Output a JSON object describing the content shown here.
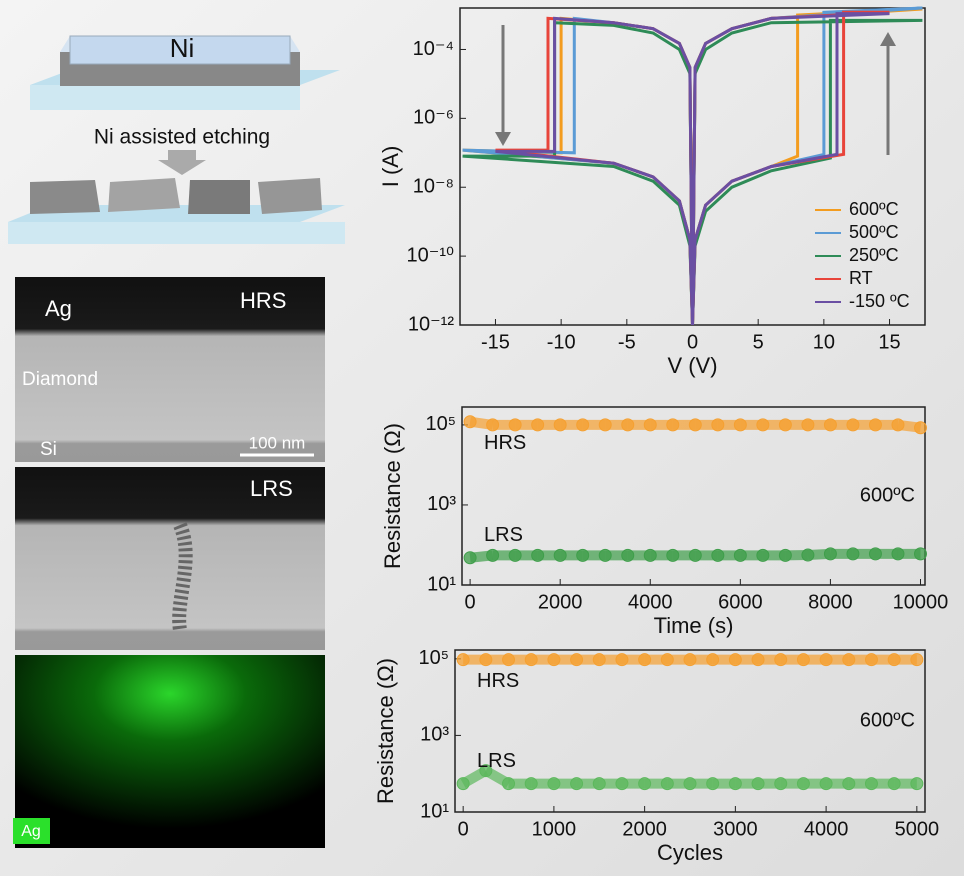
{
  "figure": {
    "schematic_top": "Ni",
    "schematic_caption": "Ni assisted etching",
    "tem_hrs": {
      "electrode": "Ag",
      "state": "HRS",
      "layer": "Diamond",
      "substrate": "Si",
      "scale_bar": "100 nm"
    },
    "tem_lrs": {
      "state": "LRS"
    },
    "eds_map": {
      "element": "Ag"
    }
  },
  "chart_data": [
    {
      "type": "line",
      "xlabel": "V (V)",
      "ylabel": "I (A)",
      "log_y": true,
      "legend": "lower right",
      "xlim": [
        -17.7,
        17.7
      ],
      "xticks": [
        -15,
        -10,
        -5,
        0,
        5,
        10,
        15
      ],
      "ylim": [
        1e-12,
        0.0016
      ],
      "yticks": [
        {
          "value": 1e-12,
          "label": "10⁻¹²"
        },
        {
          "value": 1e-10,
          "label": "10⁻¹⁰"
        },
        {
          "value": 1e-08,
          "label": "10⁻⁸"
        },
        {
          "value": 1e-06,
          "label": "10⁻⁶"
        },
        {
          "value": 0.0001,
          "label": "10⁻⁴"
        }
      ],
      "series": [
        {
          "name": "600ºC",
          "color": "#f39c1f",
          "x": [
            0,
            0.2,
            1,
            3,
            6,
            8,
            8,
            17.5,
            6,
            3,
            1,
            0.2,
            0,
            -0.2,
            -1,
            -3,
            -6,
            -10,
            -10,
            -17.5,
            -6,
            -3,
            -1,
            -0.2,
            0
          ],
          "values": [
            1e-12,
            3e-10,
            3e-09,
            1.5e-08,
            4e-08,
            8e-08,
            0.001,
            0.0015,
            0.0008,
            0.0004,
            0.00015,
            3e-05,
            1e-12,
            3e-05,
            0.00015,
            0.0004,
            0.0006,
            0.0008,
            1e-07,
            1.2e-07,
            5e-08,
            2e-08,
            4e-09,
            3e-10,
            1e-12
          ]
        },
        {
          "name": "500ºC",
          "color": "#5b9bd5",
          "x": [
            0,
            0.2,
            1,
            3,
            6,
            10,
            10,
            17.5,
            6,
            3,
            1,
            0.2,
            0,
            -0.2,
            -1,
            -3,
            -6,
            -9,
            -9,
            -17.5,
            -6,
            -3,
            -1,
            -0.2,
            0
          ],
          "values": [
            1e-12,
            3e-10,
            3e-09,
            1.5e-08,
            4e-08,
            9e-08,
            0.0012,
            0.0016,
            0.0008,
            0.0004,
            0.00015,
            3e-05,
            1e-12,
            3e-05,
            0.00015,
            0.0004,
            0.0006,
            0.0008,
            1e-07,
            1.2e-07,
            5e-08,
            2e-08,
            4e-09,
            3e-10,
            1e-12
          ]
        },
        {
          "name": "250ºC",
          "color": "#2e8b57",
          "x": [
            0,
            0.2,
            1,
            3,
            6,
            10.5,
            10.5,
            17.5,
            6,
            3,
            1,
            0.2,
            0,
            -0.2,
            -1,
            -3,
            -6,
            -10.5,
            -10.5,
            -17.5,
            -6,
            -3,
            -1,
            -0.2,
            0
          ],
          "values": [
            1e-12,
            2e-10,
            2e-09,
            1e-08,
            3e-08,
            7e-08,
            0.0007,
            0.0007,
            0.0006,
            0.0003,
            0.0001,
            2e-05,
            1e-12,
            2e-05,
            0.0001,
            0.0003,
            0.0005,
            0.0006,
            8e-08,
            8e-08,
            4e-08,
            1.5e-08,
            3e-09,
            2e-10,
            1e-12
          ]
        },
        {
          "name": "RT",
          "color": "#e8443a",
          "x": [
            0,
            0.2,
            1,
            3,
            6,
            11.5,
            11.5,
            15,
            6,
            3,
            1,
            0.2,
            0,
            -0.2,
            -1,
            -3,
            -6,
            -11,
            -11,
            -15,
            -6,
            -3,
            -1,
            -0.2,
            0
          ],
          "values": [
            1e-12,
            3e-10,
            3e-09,
            1.5e-08,
            4e-08,
            9e-08,
            0.0012,
            0.0012,
            0.0008,
            0.0004,
            0.00015,
            3e-05,
            1e-12,
            3e-05,
            0.00015,
            0.0004,
            0.0006,
            0.0008,
            1.2e-07,
            1.2e-07,
            5e-08,
            2e-08,
            4e-09,
            3e-10,
            1e-12
          ]
        },
        {
          "name": "-150 ºC",
          "color": "#6a4fa3",
          "x": [
            0,
            0.2,
            1,
            3,
            6,
            11,
            11,
            15,
            6,
            3,
            1,
            0.2,
            0,
            -0.2,
            -1,
            -3,
            -6,
            -10.5,
            -10.5,
            -15,
            -6,
            -3,
            -1,
            -0.2,
            0
          ],
          "values": [
            1e-12,
            3e-10,
            3e-09,
            1.5e-08,
            4e-08,
            9e-08,
            0.0011,
            0.0011,
            0.0008,
            0.0004,
            0.00015,
            3e-05,
            1e-12,
            3e-05,
            0.00015,
            0.0004,
            0.0006,
            0.0008,
            1.1e-07,
            1.1e-07,
            5e-08,
            2e-08,
            4e-09,
            3e-10,
            1e-12
          ]
        }
      ]
    },
    {
      "type": "scatter",
      "xlabel": "Time (s)",
      "ylabel": "Resistance (Ω)",
      "log_y": true,
      "annotation": "600ºC",
      "xlim": [
        -180,
        10100
      ],
      "xticks": [
        0,
        2000,
        4000,
        6000,
        8000,
        10000
      ],
      "ylim": [
        10,
        280000
      ],
      "yticks": [
        {
          "value": 10,
          "label": "10¹"
        },
        {
          "value": 1000,
          "label": "10³"
        },
        {
          "value": 100000,
          "label": "10⁵"
        }
      ],
      "x": [
        0,
        500,
        1000,
        1500,
        2000,
        2500,
        3000,
        3500,
        4000,
        4500,
        5000,
        5500,
        6000,
        6500,
        7000,
        7500,
        8000,
        8500,
        9000,
        9500,
        10000
      ],
      "series": [
        {
          "name": "HRS",
          "color": "#f5a030",
          "values": [
            120000,
            100000,
            100000,
            100000,
            100000,
            100000,
            100000,
            100000,
            100000,
            100000,
            100000,
            100000,
            100000,
            100000,
            100000,
            100000,
            100000,
            100000,
            100000,
            100000,
            85000
          ]
        },
        {
          "name": "LRS",
          "color": "#3f9e4a",
          "values": [
            48,
            55,
            55,
            55,
            55,
            55,
            55,
            55,
            55,
            55,
            55,
            55,
            55,
            55,
            55,
            56,
            60,
            60,
            60,
            60,
            60
          ]
        }
      ]
    },
    {
      "type": "scatter",
      "xlabel": "Cycles",
      "ylabel": "Resistance (Ω)",
      "log_y": true,
      "annotation": "600ºC",
      "xlim": [
        -90,
        5090
      ],
      "xticks": [
        0,
        1000,
        2000,
        3000,
        4000,
        5000
      ],
      "ylim": [
        10,
        170000
      ],
      "yticks": [
        {
          "value": 10,
          "label": "10¹"
        },
        {
          "value": 1000,
          "label": "10³"
        },
        {
          "value": 100000,
          "label": "10⁵"
        }
      ],
      "x": [
        0,
        250,
        500,
        750,
        1000,
        1250,
        1500,
        1750,
        2000,
        2250,
        2500,
        2750,
        3000,
        3250,
        3500,
        3750,
        4000,
        4250,
        4500,
        4750,
        5000
      ],
      "series": [
        {
          "name": "HRS",
          "color": "#f5a030",
          "values": [
            95000,
            95000,
            95000,
            95000,
            95000,
            95000,
            95000,
            95000,
            95000,
            95000,
            95000,
            95000,
            95000,
            95000,
            95000,
            95000,
            95000,
            95000,
            95000,
            95000,
            95000
          ]
        },
        {
          "name": "LRS",
          "color": "#5cb85c",
          "values": [
            55,
            120,
            55,
            55,
            55,
            55,
            55,
            55,
            55,
            55,
            55,
            55,
            55,
            55,
            55,
            55,
            55,
            55,
            55,
            55,
            55
          ]
        }
      ]
    }
  ]
}
